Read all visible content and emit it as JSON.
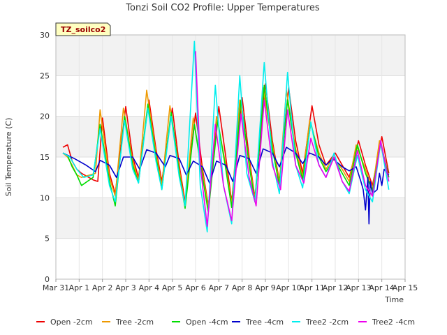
{
  "chart_data": {
    "type": "line",
    "title": "Tonzi Soil CO2 Profile: Upper Temperatures",
    "xlabel": "Time",
    "ylabel": "Soil Temperature (C)",
    "badge": "TZ_soilco2",
    "xlim": [
      0,
      15
    ],
    "ylim": [
      0,
      30
    ],
    "y_ticks": [
      0,
      5,
      10,
      15,
      20,
      25,
      30
    ],
    "x_ticks": [
      {
        "v": 0,
        "label": "Mar 31"
      },
      {
        "v": 1,
        "label": "Apr 1"
      },
      {
        "v": 2,
        "label": "Apr 2"
      },
      {
        "v": 3,
        "label": "Apr 3"
      },
      {
        "v": 4,
        "label": "Apr 4"
      },
      {
        "v": 5,
        "label": "Apr 5"
      },
      {
        "v": 6,
        "label": "Apr 6"
      },
      {
        "v": 7,
        "label": "Apr 7"
      },
      {
        "v": 8,
        "label": "Apr 8"
      },
      {
        "v": 9,
        "label": "Apr 9"
      },
      {
        "v": 10,
        "label": "Apr 10"
      },
      {
        "v": 11,
        "label": "Apr 11"
      },
      {
        "v": 12,
        "label": "Apr 12"
      },
      {
        "v": 13,
        "label": "Apr 13"
      },
      {
        "v": 14,
        "label": "Apr 14"
      },
      {
        "v": 15,
        "label": "Apr 15"
      }
    ],
    "grid": true,
    "legend_position": "bottom",
    "series": [
      {
        "name": "Open -2cm",
        "color": "#ee0000",
        "points": [
          [
            0.3,
            16.2
          ],
          [
            0.5,
            16.5
          ],
          [
            0.7,
            14.5
          ],
          [
            0.9,
            13.5
          ],
          [
            1.1,
            13.0
          ],
          [
            1.6,
            12.2
          ],
          [
            1.8,
            12.0
          ],
          [
            2.0,
            19.8
          ],
          [
            2.3,
            13.0
          ],
          [
            2.55,
            10.5
          ],
          [
            3.0,
            21.2
          ],
          [
            3.3,
            15.0
          ],
          [
            3.55,
            12.5
          ],
          [
            4.0,
            22.0
          ],
          [
            4.3,
            16.0
          ],
          [
            4.55,
            12.0
          ],
          [
            5.0,
            21.0
          ],
          [
            5.3,
            14.0
          ],
          [
            5.55,
            9.5
          ],
          [
            6.0,
            20.4
          ],
          [
            6.3,
            13.5
          ],
          [
            6.55,
            9.0
          ],
          [
            7.0,
            21.2
          ],
          [
            7.3,
            15.0
          ],
          [
            7.55,
            9.5
          ],
          [
            8.0,
            22.3
          ],
          [
            8.3,
            15.0
          ],
          [
            8.55,
            10.0
          ],
          [
            9.0,
            24.0
          ],
          [
            9.3,
            17.0
          ],
          [
            9.6,
            12.0
          ],
          [
            10.0,
            23.5
          ],
          [
            10.3,
            17.0
          ],
          [
            10.6,
            13.0
          ],
          [
            11.0,
            21.3
          ],
          [
            11.3,
            16.5
          ],
          [
            11.6,
            14.0
          ],
          [
            12.0,
            15.5
          ],
          [
            12.3,
            14.0
          ],
          [
            12.6,
            12.5
          ],
          [
            13.0,
            17.0
          ],
          [
            13.3,
            14.0
          ],
          [
            13.6,
            11.5
          ],
          [
            14.0,
            17.5
          ],
          [
            14.3,
            13.0
          ]
        ]
      },
      {
        "name": "Tree -2cm",
        "color": "#ee9900",
        "points": [
          [
            0.3,
            15.5
          ],
          [
            0.5,
            15.0
          ],
          [
            0.7,
            14.0
          ],
          [
            0.9,
            12.8
          ],
          [
            1.1,
            12.5
          ],
          [
            1.7,
            13.0
          ],
          [
            1.9,
            20.8
          ],
          [
            2.3,
            12.5
          ],
          [
            2.55,
            10.2
          ],
          [
            2.9,
            21.0
          ],
          [
            3.3,
            14.5
          ],
          [
            3.55,
            12.0
          ],
          [
            3.9,
            23.2
          ],
          [
            4.3,
            15.5
          ],
          [
            4.55,
            11.5
          ],
          [
            4.9,
            21.3
          ],
          [
            5.3,
            13.5
          ],
          [
            5.55,
            9.0
          ],
          [
            5.9,
            19.8
          ],
          [
            6.3,
            13.0
          ],
          [
            6.55,
            8.8
          ],
          [
            6.9,
            20.0
          ],
          [
            7.3,
            14.0
          ],
          [
            7.55,
            9.2
          ],
          [
            7.9,
            22.0
          ],
          [
            8.3,
            14.5
          ],
          [
            8.55,
            9.8
          ],
          [
            8.9,
            23.5
          ],
          [
            9.3,
            16.5
          ],
          [
            9.6,
            11.8
          ],
          [
            9.9,
            23.2
          ],
          [
            10.3,
            16.0
          ],
          [
            10.6,
            12.5
          ],
          [
            10.9,
            19.5
          ],
          [
            11.3,
            15.5
          ],
          [
            11.6,
            13.5
          ],
          [
            11.9,
            15.0
          ],
          [
            12.3,
            13.5
          ],
          [
            12.6,
            12.0
          ],
          [
            12.9,
            16.5
          ],
          [
            13.3,
            13.5
          ],
          [
            13.6,
            11.0
          ],
          [
            13.9,
            17.0
          ],
          [
            14.3,
            12.5
          ]
        ]
      },
      {
        "name": "Open -4cm",
        "color": "#00dd00",
        "points": [
          [
            0.3,
            15.5
          ],
          [
            0.5,
            15.2
          ],
          [
            0.7,
            13.8
          ],
          [
            0.9,
            12.8
          ],
          [
            1.1,
            11.5
          ],
          [
            1.6,
            12.5
          ],
          [
            1.9,
            19.0
          ],
          [
            2.3,
            12.0
          ],
          [
            2.55,
            9.0
          ],
          [
            2.95,
            20.0
          ],
          [
            3.3,
            14.0
          ],
          [
            3.55,
            11.8
          ],
          [
            3.95,
            21.5
          ],
          [
            4.3,
            15.0
          ],
          [
            4.55,
            11.0
          ],
          [
            4.95,
            20.5
          ],
          [
            5.3,
            13.0
          ],
          [
            5.55,
            8.7
          ],
          [
            5.95,
            19.0
          ],
          [
            6.3,
            12.5
          ],
          [
            6.55,
            8.2
          ],
          [
            6.95,
            19.5
          ],
          [
            7.3,
            13.5
          ],
          [
            7.55,
            8.8
          ],
          [
            7.95,
            22.0
          ],
          [
            8.3,
            14.0
          ],
          [
            8.55,
            9.5
          ],
          [
            8.95,
            23.8
          ],
          [
            9.3,
            16.0
          ],
          [
            9.6,
            11.5
          ],
          [
            9.95,
            22.0
          ],
          [
            10.3,
            15.5
          ],
          [
            10.6,
            12.2
          ],
          [
            10.95,
            19.2
          ],
          [
            11.3,
            15.0
          ],
          [
            11.6,
            13.2
          ],
          [
            11.95,
            14.8
          ],
          [
            12.3,
            13.0
          ],
          [
            12.6,
            11.5
          ],
          [
            12.95,
            16.5
          ],
          [
            13.3,
            13.0
          ],
          [
            13.6,
            10.8
          ],
          [
            13.95,
            16.8
          ],
          [
            14.3,
            12.5
          ]
        ]
      },
      {
        "name": "Tree -4cm",
        "color": "#0000cc",
        "points": [
          [
            0.3,
            15.5
          ],
          [
            0.8,
            14.8
          ],
          [
            1.3,
            14.0
          ],
          [
            1.7,
            13.2
          ],
          [
            1.9,
            14.6
          ],
          [
            2.3,
            14.0
          ],
          [
            2.6,
            12.5
          ],
          [
            2.9,
            15.0
          ],
          [
            3.3,
            15.0
          ],
          [
            3.6,
            13.5
          ],
          [
            3.9,
            15.9
          ],
          [
            4.3,
            15.5
          ],
          [
            4.7,
            13.8
          ],
          [
            4.9,
            15.2
          ],
          [
            5.3,
            14.8
          ],
          [
            5.6,
            12.8
          ],
          [
            5.9,
            14.5
          ],
          [
            6.3,
            13.8
          ],
          [
            6.6,
            11.8
          ],
          [
            6.9,
            14.5
          ],
          [
            7.3,
            14.0
          ],
          [
            7.6,
            12.0
          ],
          [
            7.9,
            15.2
          ],
          [
            8.3,
            14.8
          ],
          [
            8.6,
            13.0
          ],
          [
            8.9,
            16.0
          ],
          [
            9.3,
            15.5
          ],
          [
            9.6,
            13.8
          ],
          [
            9.9,
            16.2
          ],
          [
            10.3,
            15.5
          ],
          [
            10.6,
            14.2
          ],
          [
            10.9,
            15.5
          ],
          [
            11.3,
            15.0
          ],
          [
            11.6,
            14.0
          ],
          [
            11.9,
            14.8
          ],
          [
            12.3,
            13.8
          ],
          [
            12.6,
            13.3
          ],
          [
            12.9,
            13.8
          ],
          [
            13.1,
            12.0
          ],
          [
            13.2,
            11.0
          ],
          [
            13.3,
            8.5
          ],
          [
            13.4,
            12.5
          ],
          [
            13.45,
            6.8
          ],
          [
            13.5,
            12.0
          ],
          [
            13.6,
            10.5
          ],
          [
            13.8,
            11.0
          ],
          [
            13.9,
            13.0
          ],
          [
            14.0,
            11.5
          ],
          [
            14.1,
            13.5
          ],
          [
            14.3,
            12.8
          ]
        ]
      },
      {
        "name": "Tree2 -2cm",
        "color": "#00eeee",
        "points": [
          [
            0.3,
            15.5
          ],
          [
            0.6,
            15.0
          ],
          [
            0.9,
            13.5
          ],
          [
            1.2,
            12.5
          ],
          [
            1.6,
            12.8
          ],
          [
            1.9,
            18.5
          ],
          [
            2.3,
            11.5
          ],
          [
            2.55,
            9.5
          ],
          [
            2.95,
            19.5
          ],
          [
            3.3,
            13.5
          ],
          [
            3.55,
            11.8
          ],
          [
            3.95,
            21.0
          ],
          [
            4.3,
            14.5
          ],
          [
            4.55,
            11.0
          ],
          [
            4.95,
            20.0
          ],
          [
            5.3,
            12.5
          ],
          [
            5.55,
            9.0
          ],
          [
            5.95,
            29.2
          ],
          [
            6.2,
            11.5
          ],
          [
            6.5,
            5.8
          ],
          [
            6.85,
            23.8
          ],
          [
            7.2,
            11.5
          ],
          [
            7.55,
            6.8
          ],
          [
            7.9,
            25.0
          ],
          [
            8.2,
            13.0
          ],
          [
            8.55,
            9.5
          ],
          [
            8.95,
            26.6
          ],
          [
            9.3,
            14.5
          ],
          [
            9.6,
            10.5
          ],
          [
            9.95,
            25.4
          ],
          [
            10.3,
            14.0
          ],
          [
            10.6,
            11.2
          ],
          [
            10.95,
            19.3
          ],
          [
            11.3,
            14.0
          ],
          [
            11.6,
            12.5
          ],
          [
            11.95,
            15.5
          ],
          [
            12.3,
            12.0
          ],
          [
            12.6,
            10.5
          ],
          [
            12.95,
            15.2
          ],
          [
            13.3,
            11.0
          ],
          [
            13.6,
            9.5
          ],
          [
            13.95,
            16.8
          ],
          [
            14.3,
            11.0
          ]
        ]
      },
      {
        "name": "Tree2 -4cm",
        "color": "#ee00ee",
        "points": [
          [
            6.0,
            28.0
          ],
          [
            6.2,
            14.0
          ],
          [
            6.5,
            6.5
          ],
          [
            6.85,
            19.0
          ],
          [
            7.2,
            11.5
          ],
          [
            7.55,
            7.2
          ],
          [
            7.95,
            20.3
          ],
          [
            8.3,
            12.5
          ],
          [
            8.6,
            9.0
          ],
          [
            8.95,
            22.0
          ],
          [
            9.3,
            14.0
          ],
          [
            9.65,
            11.0
          ],
          [
            9.95,
            20.8
          ],
          [
            10.3,
            14.0
          ],
          [
            10.65,
            11.8
          ],
          [
            10.95,
            17.3
          ],
          [
            11.3,
            14.0
          ],
          [
            11.6,
            12.5
          ],
          [
            11.95,
            15.0
          ],
          [
            12.3,
            12.0
          ],
          [
            12.6,
            10.8
          ],
          [
            12.95,
            15.8
          ],
          [
            13.3,
            11.5
          ],
          [
            13.6,
            10.2
          ],
          [
            13.95,
            17.0
          ],
          [
            14.3,
            12.0
          ]
        ]
      }
    ]
  }
}
